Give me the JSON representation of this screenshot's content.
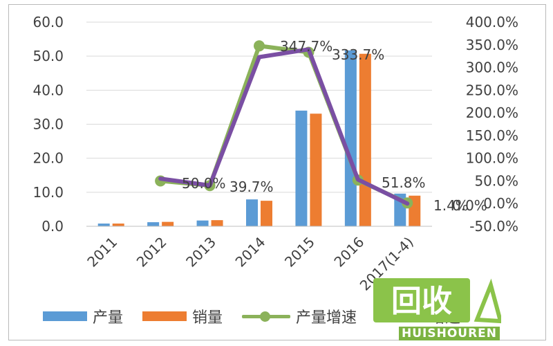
{
  "chart_data": {
    "type": "bar",
    "categories": [
      "2011",
      "2012",
      "2013",
      "2014",
      "2015",
      "2016",
      "2017(1-4)"
    ],
    "series": [
      {
        "name": "产量",
        "type": "bar",
        "axis": "left",
        "color": "#5b9bd5",
        "values": [
          0.8,
          1.2,
          1.7,
          7.9,
          34.0,
          51.7,
          9.6
        ]
      },
      {
        "name": "销量",
        "type": "bar",
        "axis": "left",
        "color": "#ed7d31",
        "values": [
          0.8,
          1.3,
          1.8,
          7.5,
          33.1,
          50.7,
          9.0
        ]
      },
      {
        "name": "产量增速",
        "type": "line",
        "axis": "right",
        "color": "#8bb25a",
        "markers": true,
        "values": [
          null,
          50.0,
          39.7,
          347.7,
          333.7,
          51.8,
          1.4
        ]
      },
      {
        "name": "",
        "type": "line",
        "axis": "right",
        "color": "#7a4fa3",
        "markers": false,
        "values": [
          null,
          55.0,
          40.0,
          323.0,
          340.0,
          53.0,
          0.0
        ]
      }
    ],
    "data_labels": [
      "50.0%",
      "39.7%",
      "347.7%",
      "333.7%",
      "51.8%",
      "1.4%",
      "0.0%"
    ],
    "left_axis": {
      "min": 0,
      "max": 60,
      "ticks": [
        "0.0",
        "10.0",
        "20.0",
        "30.0",
        "40.0",
        "50.0",
        "60.0"
      ]
    },
    "right_axis": {
      "min": -50,
      "max": 400,
      "ticks": [
        "-50.0%",
        "0.0%",
        "50.0%",
        "100.0%",
        "150.0%",
        "200.0%",
        "250.0%",
        "300.0%",
        "350.0%",
        "400.0%"
      ]
    },
    "grid": true,
    "legend_position": "bottom",
    "title": "",
    "xlabel": "",
    "ylabel": ""
  },
  "legend": {
    "items": [
      "产量",
      "销量",
      "产量增速",
      "增速"
    ]
  },
  "watermark": {
    "logo_text": "回收",
    "brand": "HUISHOUREN"
  }
}
